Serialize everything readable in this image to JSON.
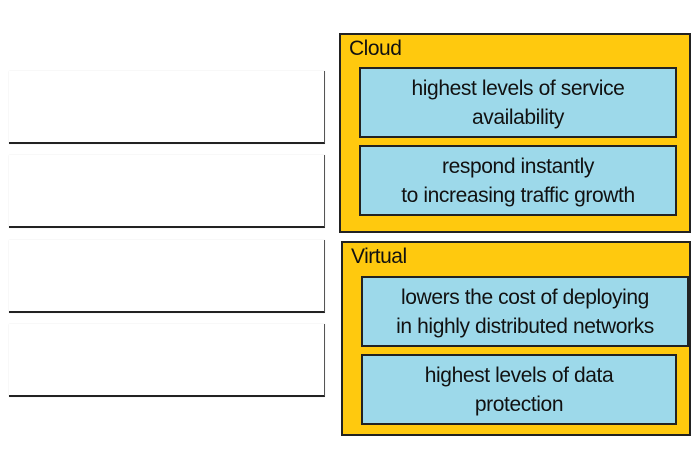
{
  "slots": [
    {
      "label": ""
    },
    {
      "label": ""
    },
    {
      "label": ""
    },
    {
      "label": ""
    }
  ],
  "groups": [
    {
      "title": "Cloud",
      "items": [
        "highest levels of service\navailability",
        "respond instantly\nto increasing traffic growth"
      ]
    },
    {
      "title": "Virtual",
      "items": [
        "lowers the cost of deploying\nin highly distributed networks",
        "highest levels of data\nprotection"
      ]
    }
  ],
  "colors": {
    "group": "#FFC90E",
    "item": "#9DD9EA"
  }
}
